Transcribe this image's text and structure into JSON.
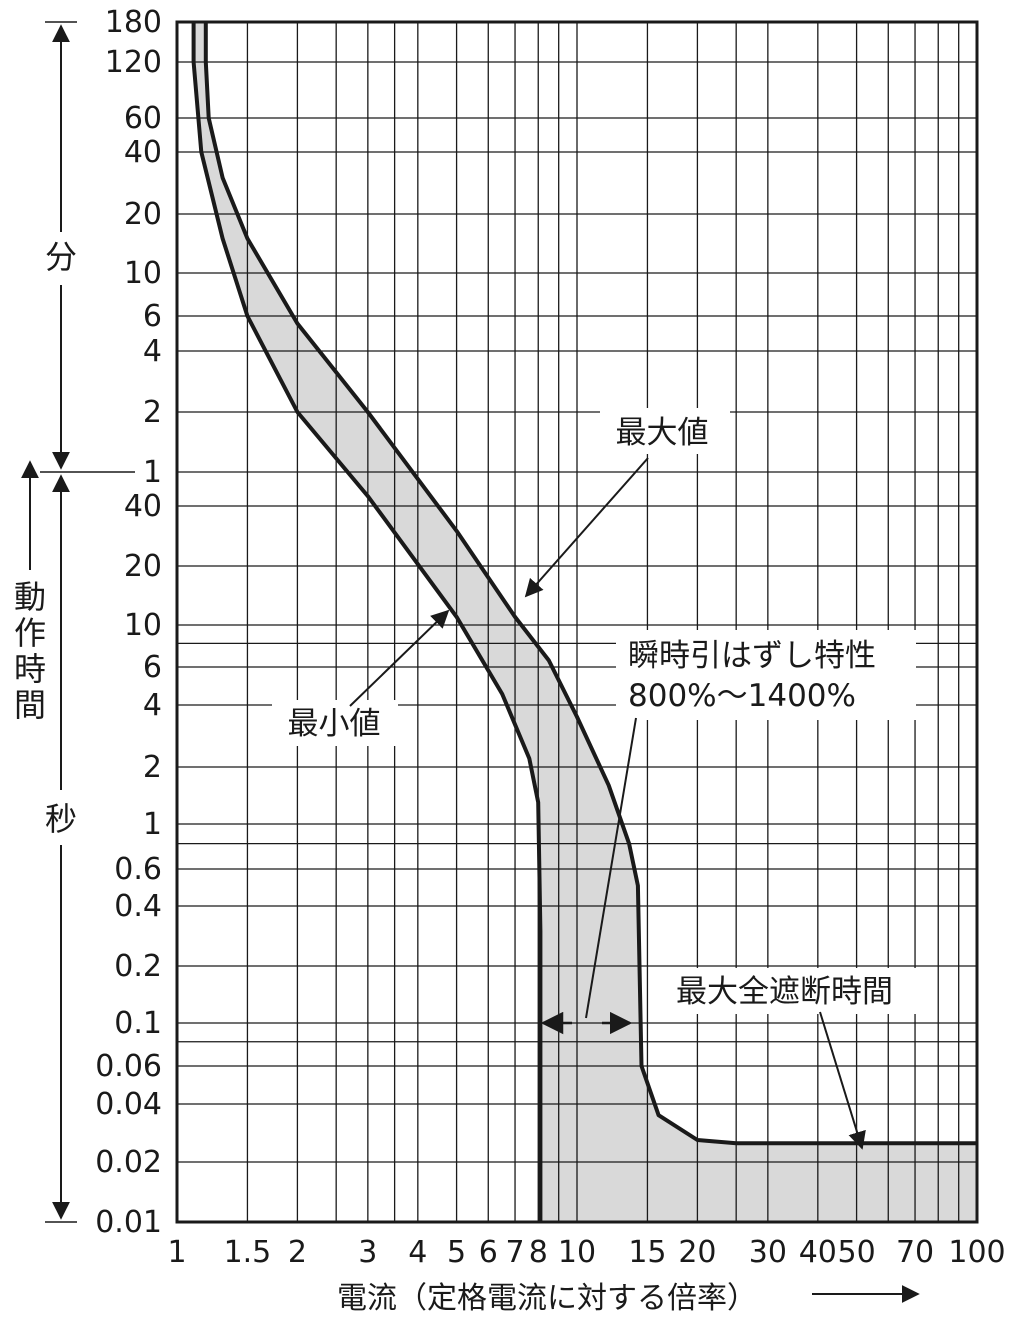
{
  "chart_data": {
    "type": "area",
    "title": "",
    "xlabel": "電流（定格電流に対する倍率）",
    "x_scale": "log",
    "y_scale": "log",
    "xlim": [
      1,
      100
    ],
    "x_ticks": [
      {
        "v": 1,
        "label": "1"
      },
      {
        "v": 1.5,
        "label": "1.5"
      },
      {
        "v": 2,
        "label": "2"
      },
      {
        "v": 3,
        "label": "3"
      },
      {
        "v": 4,
        "label": "4"
      },
      {
        "v": 5,
        "label": "5"
      },
      {
        "v": 6,
        "label": "6"
      },
      {
        "v": 7,
        "label": "7"
      },
      {
        "v": 8,
        "label": "8"
      },
      {
        "v": 10,
        "label": "10"
      },
      {
        "v": 15,
        "label": "15"
      },
      {
        "v": 20,
        "label": "20"
      },
      {
        "v": 30,
        "label": "30"
      },
      {
        "v": 40,
        "label": "40"
      },
      {
        "v": 50,
        "label": "50"
      },
      {
        "v": 70,
        "label": "70"
      },
      {
        "v": 100,
        "label": "100"
      }
    ],
    "y_unit_labels": {
      "minutes": "分",
      "seconds": "秒",
      "axis": "動作時間"
    },
    "y_range_seconds": [
      0.01,
      10800
    ],
    "y_ticks_minutes": [
      {
        "v": 180,
        "label": "180"
      },
      {
        "v": 120,
        "label": "120"
      },
      {
        "v": 60,
        "label": "60"
      },
      {
        "v": 40,
        "label": "40"
      },
      {
        "v": 20,
        "label": "20"
      },
      {
        "v": 10,
        "label": "10"
      },
      {
        "v": 6,
        "label": "6"
      },
      {
        "v": 4,
        "label": "4"
      },
      {
        "v": 2,
        "label": "2"
      },
      {
        "v": 1,
        "label": "1"
      }
    ],
    "y_ticks_seconds": [
      {
        "v": 40,
        "label": "40"
      },
      {
        "v": 20,
        "label": "20"
      },
      {
        "v": 10,
        "label": "10"
      },
      {
        "v": 6,
        "label": "6"
      },
      {
        "v": 4,
        "label": "4"
      },
      {
        "v": 2,
        "label": "2"
      },
      {
        "v": 1,
        "label": "1"
      },
      {
        "v": 0.6,
        "label": "0.6"
      },
      {
        "v": 0.4,
        "label": "0.4"
      },
      {
        "v": 0.2,
        "label": "0.2"
      },
      {
        "v": 0.1,
        "label": "0.1"
      },
      {
        "v": 0.06,
        "label": "0.06"
      },
      {
        "v": 0.04,
        "label": "0.04"
      },
      {
        "v": 0.02,
        "label": "0.02"
      },
      {
        "v": 0.01,
        "label": "0.01"
      }
    ],
    "series": [
      {
        "name": "最大値",
        "unit_y": "seconds",
        "x": [
          1.18,
          1.18,
          1.2,
          1.3,
          1.5,
          2.0,
          3.0,
          5.0,
          7.0,
          8.5,
          10.0,
          12.0,
          13.5,
          14.2,
          14.5,
          16.0,
          20.0,
          25.0,
          50.0,
          100.0
        ],
        "y": [
          10800,
          7200,
          3600,
          1800,
          900,
          330,
          120,
          30,
          11,
          6.5,
          3.5,
          1.6,
          0.8,
          0.5,
          0.06,
          0.035,
          0.026,
          0.025,
          0.025,
          0.025
        ]
      },
      {
        "name": "最小値",
        "unit_y": "seconds",
        "x": [
          1.1,
          1.1,
          1.15,
          1.3,
          1.5,
          2.0,
          3.0,
          5.0,
          6.5,
          7.6,
          8.0,
          8.1,
          8.1
        ],
        "y": [
          10800,
          7200,
          2400,
          900,
          360,
          120,
          45,
          11,
          4.5,
          2.2,
          1.3,
          0.3,
          0.01
        ]
      }
    ],
    "annotations": {
      "max_label": "最大値",
      "min_label": "最小値",
      "instant_title": "瞬時引はずし特性",
      "instant_range": "800%〜1400%",
      "max_break_time": "最大全遮断時間"
    }
  }
}
